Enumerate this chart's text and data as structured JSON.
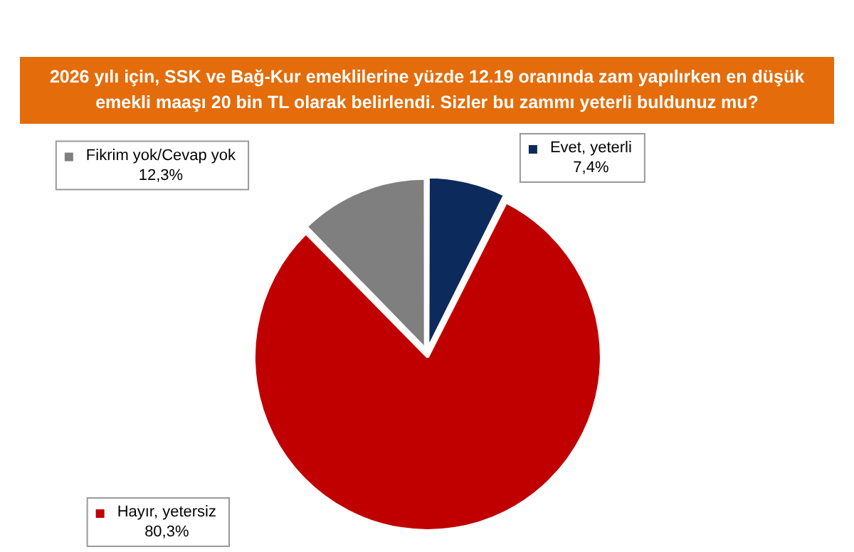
{
  "chart_data": {
    "type": "pie",
    "title": "2026 yılı için, SSK ve Bağ-Kur emeklilerine yüzde 12.19 oranında zam yapılırken en düşük emekli maaşı 20 bin TL olarak belirlendi. Sizler bu zammı yeterli buldunuz mu?",
    "categories": [
      "Evet, yeterli",
      "Hayır, yetersiz",
      "Fikrim yok/Cevap yok"
    ],
    "values": [
      7.4,
      80.3,
      12.3
    ],
    "value_labels": [
      "7,4%",
      "80,3%",
      "12,3%"
    ],
    "colors": [
      "#0d2a5c",
      "#c00000",
      "#7f7f7f"
    ],
    "legend": "left"
  }
}
